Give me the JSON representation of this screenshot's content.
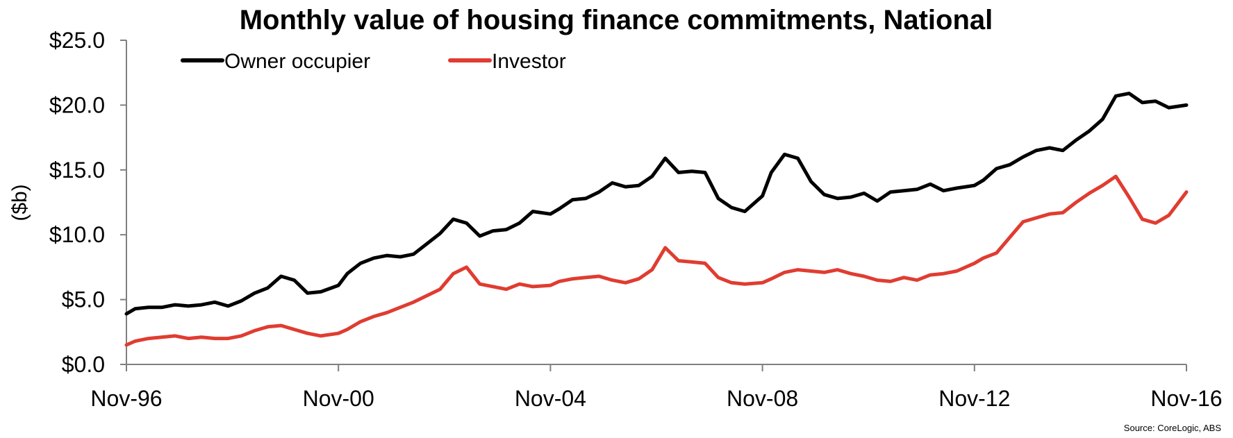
{
  "chart_data": {
    "type": "line",
    "title": "Monthly value of housing finance commitments, National",
    "ylabel": "($b)",
    "xlabel": "",
    "ylim": [
      0,
      25
    ],
    "yticks": [
      "$0.0",
      "$5.0",
      "$10.0",
      "$15.0",
      "$20.0",
      "$25.0"
    ],
    "ytick_values": [
      0,
      5,
      10,
      15,
      20,
      25
    ],
    "xlim": [
      1996.833,
      2016.833
    ],
    "xticks": [
      "Nov-96",
      "Nov-00",
      "Nov-04",
      "Nov-08",
      "Nov-12",
      "Nov-16"
    ],
    "xtick_values": [
      1996.833,
      2000.833,
      2004.833,
      2008.833,
      2012.833,
      2016.833
    ],
    "grid": false,
    "legend": "top-left",
    "source": "Source: CoreLogic, ABS",
    "series": [
      {
        "name": "Owner occupier",
        "color": "#000000",
        "x": [
          1996.833,
          1997.0,
          1997.25,
          1997.5,
          1997.75,
          1998.0,
          1998.25,
          1998.5,
          1998.75,
          1999.0,
          1999.25,
          1999.5,
          1999.75,
          2000.0,
          2000.25,
          2000.5,
          2000.833,
          2001.0,
          2001.25,
          2001.5,
          2001.75,
          2002.0,
          2002.25,
          2002.5,
          2002.75,
          2003.0,
          2003.25,
          2003.5,
          2003.75,
          2004.0,
          2004.25,
          2004.5,
          2004.833,
          2005.0,
          2005.25,
          2005.5,
          2005.75,
          2006.0,
          2006.25,
          2006.5,
          2006.75,
          2007.0,
          2007.25,
          2007.5,
          2007.75,
          2008.0,
          2008.25,
          2008.5,
          2008.833,
          2009.0,
          2009.25,
          2009.5,
          2009.75,
          2010.0,
          2010.25,
          2010.5,
          2010.75,
          2011.0,
          2011.25,
          2011.5,
          2011.75,
          2012.0,
          2012.25,
          2012.5,
          2012.833,
          2013.0,
          2013.25,
          2013.5,
          2013.75,
          2014.0,
          2014.25,
          2014.5,
          2014.75,
          2015.0,
          2015.25,
          2015.5,
          2015.75,
          2016.0,
          2016.25,
          2016.5,
          2016.833
        ],
        "values": [
          3.9,
          4.3,
          4.4,
          4.4,
          4.6,
          4.5,
          4.6,
          4.8,
          4.5,
          4.9,
          5.5,
          5.9,
          6.8,
          6.5,
          5.5,
          5.6,
          6.1,
          7.0,
          7.8,
          8.2,
          8.4,
          8.3,
          8.5,
          9.3,
          10.1,
          11.2,
          10.9,
          9.9,
          10.3,
          10.4,
          10.9,
          11.8,
          11.6,
          12.0,
          12.7,
          12.8,
          13.3,
          14.0,
          13.7,
          13.8,
          14.5,
          15.9,
          14.8,
          14.9,
          14.8,
          12.8,
          12.1,
          11.8,
          13.0,
          14.8,
          16.2,
          15.9,
          14.1,
          13.1,
          12.8,
          12.9,
          13.2,
          12.6,
          13.3,
          13.4,
          13.5,
          13.9,
          13.4,
          13.6,
          13.8,
          14.2,
          15.1,
          15.4,
          16.0,
          16.5,
          16.7,
          16.5,
          17.3,
          18.0,
          18.9,
          20.7,
          20.9,
          20.2,
          20.3,
          19.8,
          20.0
        ]
      },
      {
        "name": "Investor",
        "color": "#e03c31",
        "x": [
          1996.833,
          1997.0,
          1997.25,
          1997.5,
          1997.75,
          1998.0,
          1998.25,
          1998.5,
          1998.75,
          1999.0,
          1999.25,
          1999.5,
          1999.75,
          2000.0,
          2000.25,
          2000.5,
          2000.833,
          2001.0,
          2001.25,
          2001.5,
          2001.75,
          2002.0,
          2002.25,
          2002.5,
          2002.75,
          2003.0,
          2003.25,
          2003.5,
          2003.75,
          2004.0,
          2004.25,
          2004.5,
          2004.833,
          2005.0,
          2005.25,
          2005.5,
          2005.75,
          2006.0,
          2006.25,
          2006.5,
          2006.75,
          2007.0,
          2007.25,
          2007.5,
          2007.75,
          2008.0,
          2008.25,
          2008.5,
          2008.833,
          2009.0,
          2009.25,
          2009.5,
          2009.75,
          2010.0,
          2010.25,
          2010.5,
          2010.75,
          2011.0,
          2011.25,
          2011.5,
          2011.75,
          2012.0,
          2012.25,
          2012.5,
          2012.833,
          2013.0,
          2013.25,
          2013.5,
          2013.75,
          2014.0,
          2014.25,
          2014.5,
          2014.75,
          2015.0,
          2015.25,
          2015.5,
          2015.75,
          2016.0,
          2016.25,
          2016.5,
          2016.833
        ],
        "values": [
          1.5,
          1.8,
          2.0,
          2.1,
          2.2,
          2.0,
          2.1,
          2.0,
          2.0,
          2.2,
          2.6,
          2.9,
          3.0,
          2.7,
          2.4,
          2.2,
          2.4,
          2.7,
          3.3,
          3.7,
          4.0,
          4.4,
          4.8,
          5.3,
          5.8,
          7.0,
          7.5,
          6.2,
          6.0,
          5.8,
          6.2,
          6.0,
          6.1,
          6.4,
          6.6,
          6.7,
          6.8,
          6.5,
          6.3,
          6.6,
          7.3,
          9.0,
          8.0,
          7.9,
          7.8,
          6.7,
          6.3,
          6.2,
          6.3,
          6.6,
          7.1,
          7.3,
          7.2,
          7.1,
          7.3,
          7.0,
          6.8,
          6.5,
          6.4,
          6.7,
          6.5,
          6.9,
          7.0,
          7.2,
          7.8,
          8.2,
          8.6,
          9.8,
          11.0,
          11.3,
          11.6,
          11.7,
          12.5,
          13.2,
          13.8,
          14.5,
          12.9,
          11.2,
          10.9,
          11.5,
          13.3
        ]
      }
    ]
  }
}
